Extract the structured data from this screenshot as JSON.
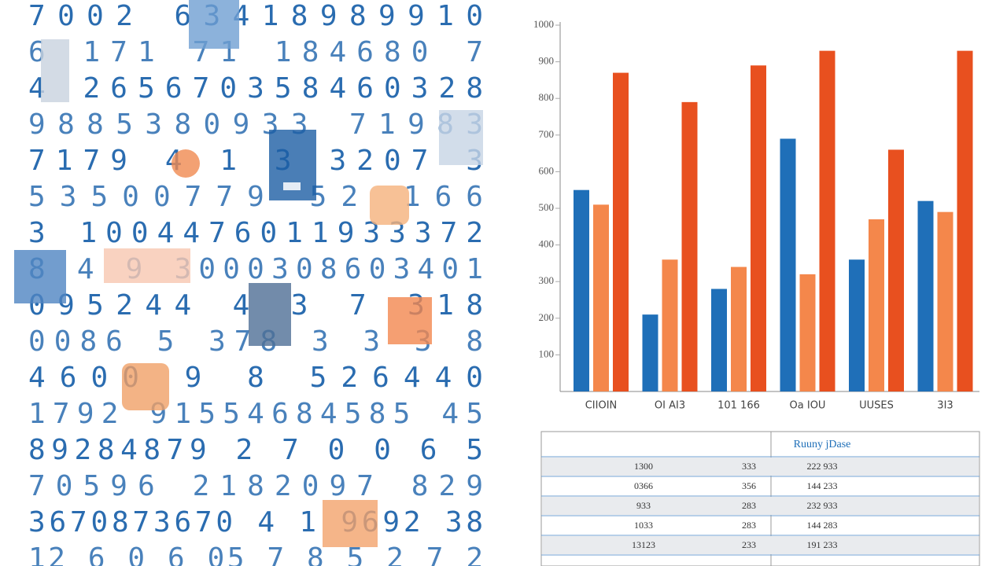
{
  "digit_wall": {
    "rows": [
      "7002 63418989910",
      "6 171 71 184680 7",
      "4 265670358460328",
      "9885380933 71983",
      "7179 4 1 3 3207 3",
      "53500779 52 166",
      "3 1004476011933372",
      "8 4 9 3000308603401",
      "095244 4 3 7 318",
      "0086 5 378 3 3 3 8",
      "4600 9 8 526440",
      "1792 91554684585 45",
      "89284879 2 7 0 0 6 5",
      "70596 2182097 829",
      "3670873670 4 1 9692 38",
      "12 6 0 6 05 7 8 5 2 7 2"
    ]
  },
  "chart_data": {
    "type": "bar",
    "categories": [
      "CIIOIN",
      "OI AI3",
      "101 166",
      "Oa IOU",
      "UUSES",
      "3I3"
    ],
    "series": [
      {
        "color": "#1f6fb8",
        "values": [
          550,
          210,
          280,
          690,
          360,
          520
        ]
      },
      {
        "color": "#f4874b",
        "values": [
          510,
          360,
          340,
          320,
          470,
          490
        ]
      },
      {
        "color": "#e8501f",
        "values": [
          870,
          790,
          890,
          930,
          660,
          930
        ]
      }
    ],
    "ylim": [
      0,
      1000
    ],
    "yticks": [
      100,
      200,
      300,
      400,
      500,
      600,
      700,
      800,
      900,
      1000
    ]
  },
  "table": {
    "header": [
      "",
      "",
      "Ruuny jDase"
    ],
    "rows": [
      [
        "1300",
        "333",
        "222 933"
      ],
      [
        "0366",
        "356",
        "144 233"
      ],
      [
        "933",
        "283",
        "232 933"
      ],
      [
        "1033",
        "283",
        "144 283"
      ],
      [
        "13123",
        "233",
        "191 233"
      ]
    ]
  }
}
